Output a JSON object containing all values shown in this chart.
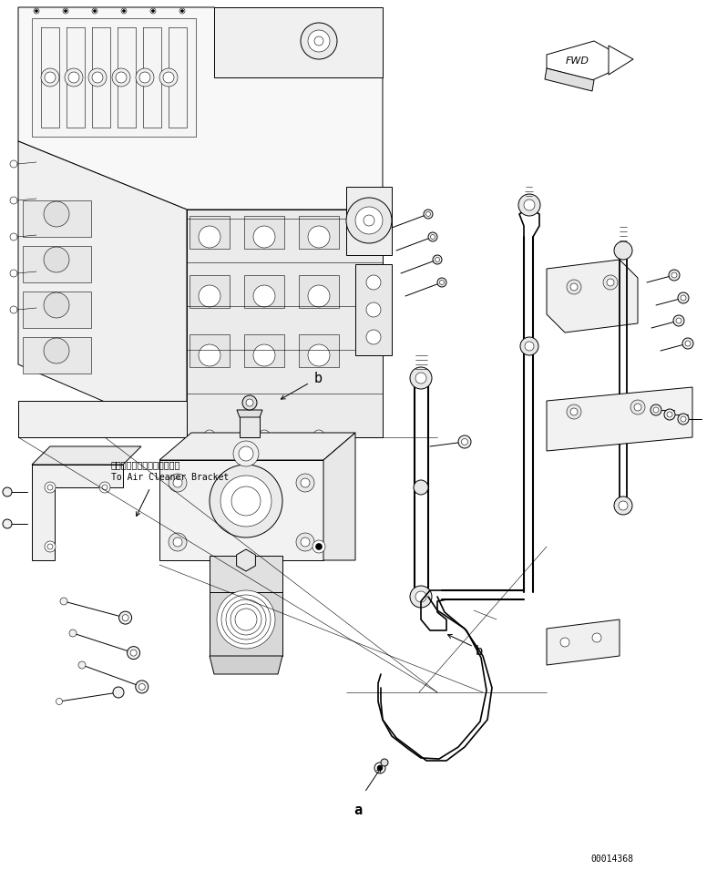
{
  "bg_color": "#ffffff",
  "line_color": "#000000",
  "fig_width": 7.76,
  "fig_height": 9.55,
  "dpi": 100,
  "label_a": "a",
  "label_b": "b",
  "fwd_text": "FWD",
  "note_jp": "エアークリーナブラケットへ",
  "note_en": "To Air Cleaner Bracket",
  "part_number": "00014368",
  "lw": 0.7,
  "tlw": 0.4
}
